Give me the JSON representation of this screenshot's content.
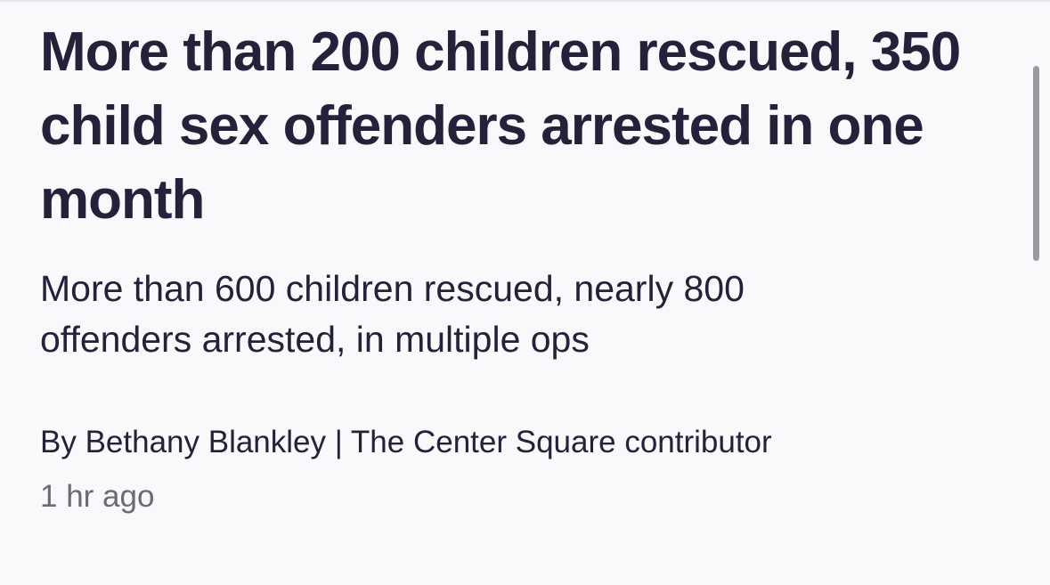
{
  "article": {
    "headline": "More than 200 children rescued, 350 child sex offenders arrested in one month",
    "subheadline": "More than 600 children rescued, nearly 800 offenders arrested, in multiple ops",
    "byline": "By Bethany Blankley | The Center Square contributor",
    "timestamp": "1 hr ago"
  }
}
